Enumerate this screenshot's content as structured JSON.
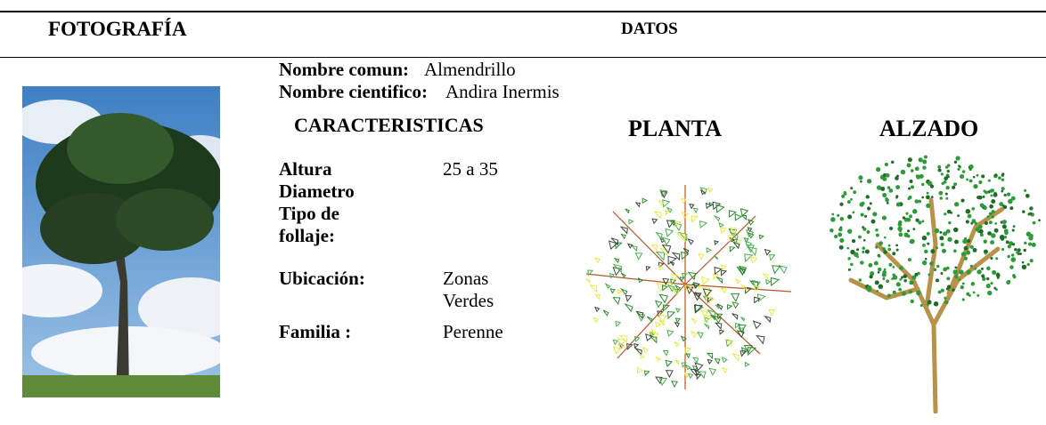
{
  "header": {
    "col1": "FOTOGRAFÍA",
    "col2": "DATOS"
  },
  "names": {
    "common_label": "Nombre comun:",
    "common_value": "Almendrillo",
    "scientific_label": "Nombre cientifico:",
    "scientific_value": "Andira Inermis"
  },
  "sections": {
    "characteristics": "CARACTERISTICAS",
    "plan": "PLANTA",
    "elevation": "ALZADO"
  },
  "rows": [
    {
      "label": "Altura",
      "value": "25 a 35"
    },
    {
      "label": "Diametro"
    },
    {
      "label": "Tipo de follaje:"
    },
    {
      "label": "Ubicación:",
      "value": "Zonas Verdes"
    },
    {
      "label": "Familia :",
      "value": "Perenne"
    }
  ]
}
